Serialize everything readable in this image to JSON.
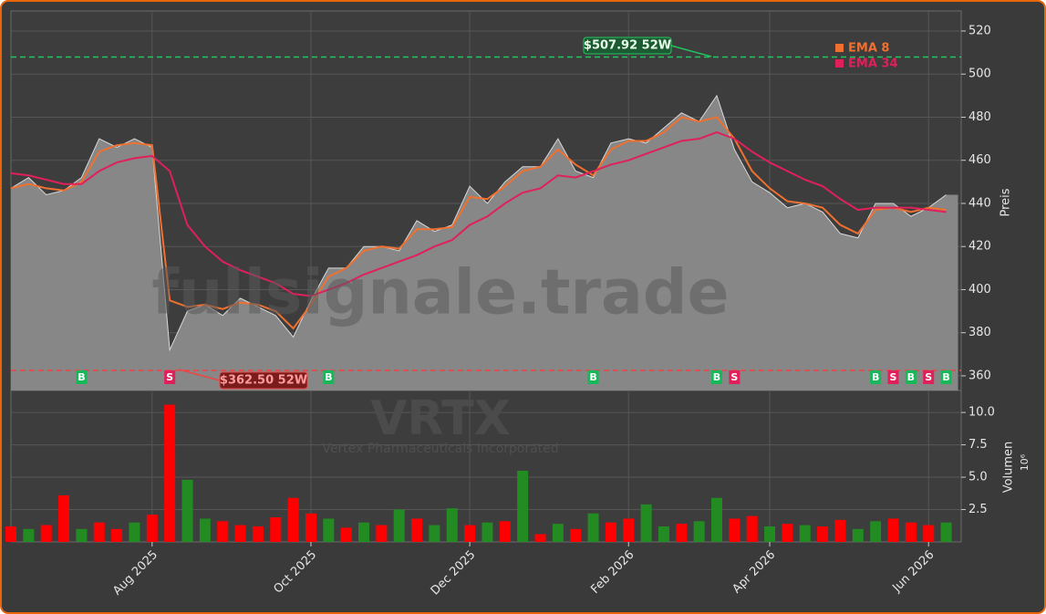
{
  "chart_data": [
    {
      "type": "area",
      "watermark": "fullsignale.trade",
      "title": "VRTX",
      "subtitle": "Vertex Pharmaceuticals Incorporated",
      "y_label": "Preis",
      "categories": [
        null,
        null,
        null,
        null,
        null,
        null,
        null,
        null,
        "Aug 2025",
        null,
        null,
        null,
        null,
        null,
        null,
        null,
        null,
        "Oct 2025",
        null,
        null,
        null,
        null,
        null,
        null,
        null,
        null,
        "Dec 2025",
        null,
        null,
        null,
        null,
        null,
        null,
        null,
        null,
        "Feb 2026",
        null,
        null,
        null,
        null,
        null,
        null,
        null,
        "Apr 2026",
        null,
        null,
        null,
        null,
        null,
        null,
        null,
        null,
        "Jun 2026",
        null
      ],
      "values": [
        447,
        452,
        444,
        446,
        452,
        470,
        466,
        470,
        466,
        372,
        390,
        393,
        388,
        396,
        392,
        388,
        378,
        395,
        410,
        410,
        420,
        420,
        418,
        432,
        427,
        430,
        448,
        440,
        450,
        457,
        457,
        470,
        455,
        452,
        468,
        470,
        468,
        475,
        482,
        478,
        490,
        465,
        450,
        445,
        438,
        440,
        436,
        426,
        424,
        440,
        440,
        434,
        438,
        444
      ],
      "color": "#878787",
      "series": [
        {
          "name": "EMA 8",
          "color": "#f07030",
          "values": [
            447,
            449,
            447,
            446,
            450,
            464,
            467,
            468,
            467,
            395,
            392,
            393,
            391,
            394,
            393,
            390,
            382,
            393,
            406,
            410,
            418,
            420,
            419,
            428,
            428,
            429,
            443,
            442,
            448,
            455,
            457,
            465,
            458,
            453,
            465,
            469,
            469,
            473,
            480,
            478,
            480,
            470,
            455,
            447,
            441,
            440,
            438,
            430,
            426,
            437,
            438,
            436,
            438,
            437
          ]
        },
        {
          "name": "EMA 34",
          "color": "#e0205a",
          "values": [
            454,
            453,
            451,
            449,
            449,
            455,
            459,
            461,
            462,
            455,
            430,
            420,
            413,
            409,
            406,
            403,
            398,
            397,
            400,
            403,
            407,
            410,
            413,
            416,
            420,
            423,
            430,
            434,
            440,
            445,
            447,
            453,
            452,
            455,
            458,
            460,
            463,
            466,
            469,
            470,
            473,
            470,
            464,
            459,
            455,
            451,
            448,
            442,
            437,
            438,
            438,
            438,
            437,
            436
          ]
        }
      ],
      "signals": [
        null,
        null,
        null,
        null,
        "B",
        null,
        null,
        null,
        null,
        "S",
        null,
        null,
        null,
        null,
        null,
        null,
        null,
        null,
        "B",
        null,
        null,
        null,
        null,
        null,
        null,
        null,
        null,
        null,
        null,
        null,
        null,
        null,
        null,
        "B",
        null,
        null,
        null,
        null,
        null,
        null,
        "B",
        "S",
        null,
        null,
        null,
        null,
        null,
        null,
        null,
        "B",
        "S",
        "B",
        "S",
        "B"
      ],
      "signal_colors": {
        "B": "#16b85a",
        "S": "#e0205a"
      },
      "hlines": [
        {
          "value": 507.92,
          "label": "$507.92 52W",
          "color": "#22c55e"
        },
        {
          "value": 362.5,
          "label": "$362.50 52W",
          "color": "#ef4444"
        }
      ],
      "ylim": [
        353.2,
        529.3
      ],
      "yticks": [
        360,
        380,
        400,
        420,
        440,
        460,
        480,
        500,
        520
      ],
      "legend": "top-right",
      "grid": true
    },
    {
      "type": "bar",
      "y_label": "Volumen",
      "y_scale_label": "10⁶",
      "values": [
        1.2,
        1.0,
        1.3,
        3.6,
        1.0,
        1.5,
        1.0,
        1.5,
        2.1,
        10.6,
        4.8,
        1.8,
        1.6,
        1.3,
        1.2,
        1.9,
        3.4,
        2.2,
        1.8,
        1.1,
        1.5,
        1.3,
        2.5,
        1.8,
        1.3,
        2.6,
        1.3,
        1.5,
        1.6,
        5.5,
        0.6,
        1.4,
        1.0,
        2.2,
        1.5,
        1.8,
        2.9,
        1.2,
        1.4,
        1.6,
        3.4,
        1.8,
        2.0,
        1.2,
        1.4,
        1.3,
        1.2,
        1.7,
        1.0,
        1.6,
        1.8,
        1.5,
        1.3,
        1.5
      ],
      "colors": [
        "#ff0000",
        "#228b22",
        "#ff0000",
        "#ff0000",
        "#228b22",
        "#ff0000",
        "#ff0000",
        "#228b22",
        "#ff0000",
        "#ff0000",
        "#228b22",
        "#228b22",
        "#ff0000",
        "#ff0000",
        "#ff0000",
        "#ff0000",
        "#ff0000",
        "#ff0000",
        "#228b22",
        "#ff0000",
        "#228b22",
        "#ff0000",
        "#228b22",
        "#ff0000",
        "#228b22",
        "#228b22",
        "#ff0000",
        "#228b22",
        "#ff0000",
        "#228b22",
        "#ff0000",
        "#228b22",
        "#ff0000",
        "#228b22",
        "#ff0000",
        "#ff0000",
        "#228b22",
        "#228b22",
        "#ff0000",
        "#228b22",
        "#228b22",
        "#ff0000",
        "#ff0000",
        "#228b22",
        "#ff0000",
        "#228b22",
        "#ff0000",
        "#ff0000",
        "#228b22",
        "#228b22",
        "#ff0000",
        "#ff0000",
        "#ff0000",
        "#228b22"
      ],
      "ylim": [
        0,
        11.7
      ],
      "yticks": [
        2.5,
        {
          "value": 5,
          "label": "5.0"
        },
        7.5,
        {
          "value": 10,
          "label": "10.0"
        }
      ],
      "grid": true
    }
  ]
}
